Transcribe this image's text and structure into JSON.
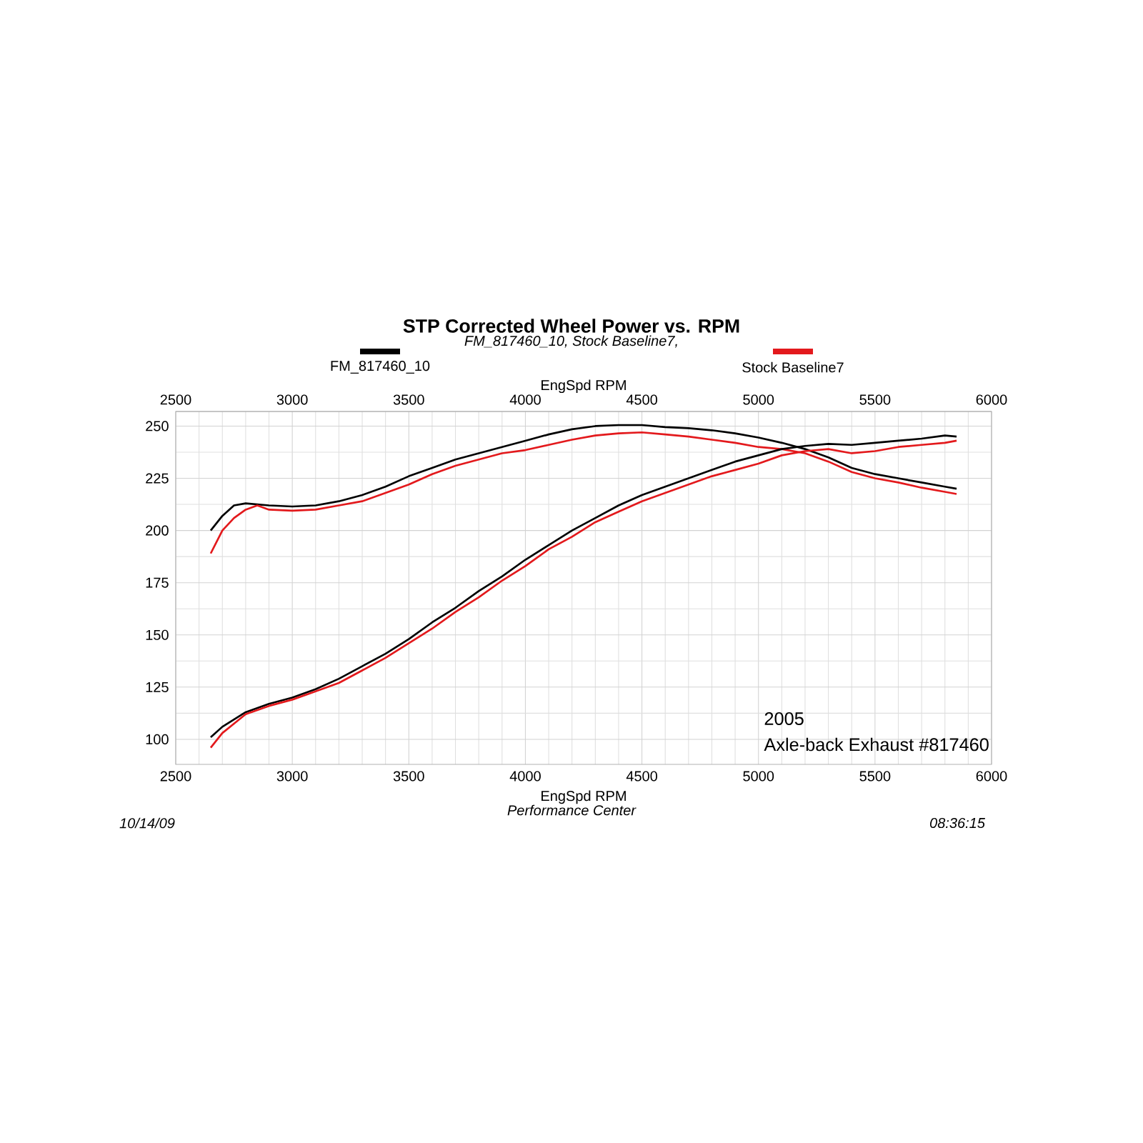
{
  "chart_data": {
    "type": "line",
    "title": "STP Corrected Wheel Power vs. RPM",
    "subtitle": "FM_817460_10, Stock Baseline7,",
    "xlabel": "EngSpd  RPM",
    "x2label": "EngSpd  RPM",
    "xlim": [
      2500,
      6000
    ],
    "xticks": [
      2500,
      3000,
      3500,
      4000,
      4500,
      5000,
      5500,
      6000
    ],
    "x2lim": [
      2500,
      6000
    ],
    "x2ticks": [
      2500,
      3000,
      3500,
      4000,
      4500,
      5000,
      5500,
      6000
    ],
    "ylim": [
      88,
      257
    ],
    "yticks": [
      100,
      125,
      150,
      175,
      200,
      225,
      250
    ],
    "grid": true,
    "legend": "top",
    "annotations": [
      "Performance Center",
      "10/14/09",
      "08:36:15",
      "2005",
      "Axle-back Exhaust #817460"
    ],
    "series": [
      {
        "name": "FM_817460_10",
        "color": "#000000",
        "x": [
          2650,
          2700,
          2750,
          2800,
          2900,
          3000,
          3100,
          3200,
          3300,
          3400,
          3500,
          3600,
          3700,
          3800,
          3900,
          4000,
          4100,
          4200,
          4300,
          4400,
          4500,
          4600,
          4700,
          4800,
          4900,
          5000,
          5100,
          5200,
          5300,
          5400,
          5500,
          5600,
          5700,
          5800,
          5850
        ],
        "values": [
          200,
          207,
          212,
          213,
          212,
          211.5,
          212,
          214,
          217,
          221,
          226,
          230,
          234,
          237,
          240,
          243,
          246,
          248.5,
          250,
          250.5,
          250.5,
          249.5,
          249,
          248,
          246.5,
          244.5,
          242,
          239,
          235,
          230,
          227,
          225,
          223,
          221,
          220
        ]
      },
      {
        "name": "Stock Baseline7",
        "color": "#e3191c",
        "x": [
          2650,
          2700,
          2750,
          2800,
          2850,
          2900,
          3000,
          3100,
          3200,
          3300,
          3400,
          3500,
          3600,
          3700,
          3800,
          3900,
          4000,
          4100,
          4200,
          4300,
          4400,
          4500,
          4600,
          4700,
          4800,
          4900,
          5000,
          5100,
          5200,
          5300,
          5400,
          5500,
          5600,
          5700,
          5800,
          5850
        ],
        "values": [
          189,
          200,
          206,
          210,
          212,
          210,
          209.5,
          210,
          212,
          214,
          218,
          222,
          227,
          231,
          234,
          237,
          238.5,
          241,
          243.5,
          245.5,
          246.5,
          247,
          246,
          245,
          243.5,
          242,
          240,
          239,
          237,
          233,
          228,
          225,
          223,
          220.5,
          218.5,
          217.5
        ]
      },
      {
        "color": "#000000",
        "x": [
          2650,
          2700,
          2800,
          2900,
          3000,
          3100,
          3200,
          3300,
          3400,
          3500,
          3600,
          3700,
          3800,
          3900,
          4000,
          4100,
          4200,
          4300,
          4400,
          4500,
          4600,
          4700,
          4800,
          4900,
          5000,
          5100,
          5200,
          5300,
          5400,
          5500,
          5600,
          5700,
          5800,
          5850
        ],
        "values": [
          101,
          106,
          113,
          117,
          120,
          124,
          129,
          135,
          141,
          148,
          156,
          163,
          171,
          178,
          186,
          193,
          200,
          206,
          212,
          217,
          221,
          225,
          229,
          233,
          236,
          239,
          240.5,
          241.5,
          241,
          242,
          243,
          244,
          245.5,
          245
        ]
      },
      {
        "color": "#e3191c",
        "x": [
          2650,
          2700,
          2800,
          2900,
          3000,
          3100,
          3200,
          3300,
          3400,
          3500,
          3600,
          3700,
          3800,
          3900,
          4000,
          4100,
          4200,
          4300,
          4400,
          4500,
          4600,
          4700,
          4800,
          4900,
          5000,
          5100,
          5200,
          5300,
          5400,
          5500,
          5600,
          5700,
          5800,
          5850
        ],
        "values": [
          96,
          103,
          112,
          116,
          119,
          123,
          127,
          133,
          139,
          146,
          153,
          161,
          168,
          176,
          183,
          191,
          197,
          204,
          209,
          214,
          218,
          222,
          226,
          229,
          232,
          236,
          238,
          239,
          237,
          238,
          240,
          241,
          242,
          243
        ]
      }
    ]
  }
}
